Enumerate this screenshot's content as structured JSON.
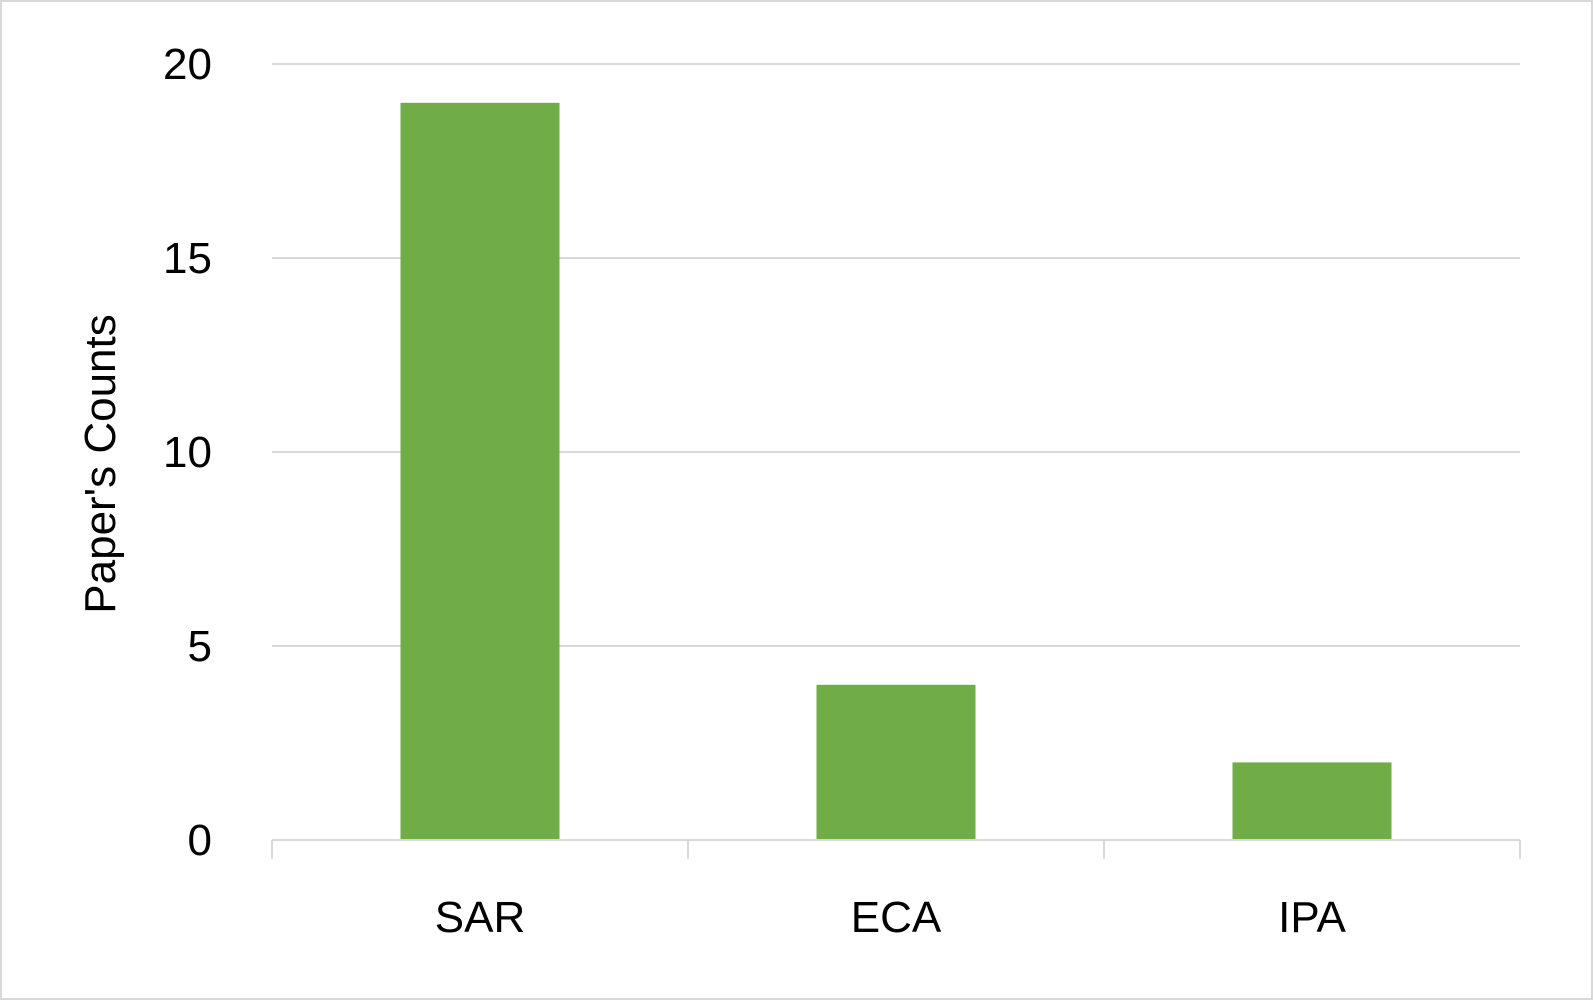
{
  "chart_data": {
    "type": "bar",
    "categories": [
      "SAR",
      "ECA",
      "IPA"
    ],
    "values": [
      19,
      4,
      2
    ],
    "title": "",
    "xlabel": "",
    "ylabel": "Paper's Counts",
    "ylim": [
      0,
      20
    ],
    "yticks": [
      "0",
      "5",
      "10",
      "15",
      "20"
    ],
    "grid": "horizontal",
    "legend": "none",
    "colors": {
      "bar": "#70AD47",
      "gridline": "#d9d9d9",
      "axis": "#d9d9d9"
    }
  }
}
